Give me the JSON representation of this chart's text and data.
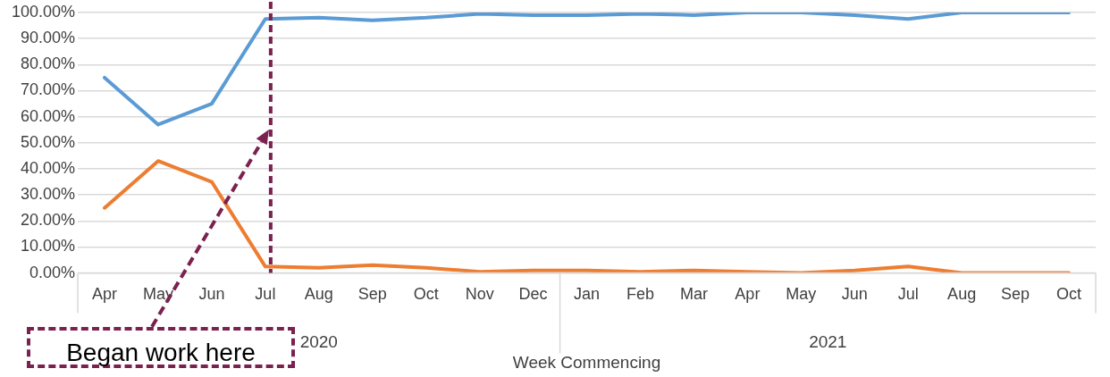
{
  "chart_data": {
    "type": "line",
    "xlabel": "Week Commencing",
    "categories": [
      "Apr",
      "May",
      "Jun",
      "Jul",
      "Aug",
      "Sep",
      "Oct",
      "Nov",
      "Dec",
      "Jan",
      "Feb",
      "Mar",
      "Apr",
      "May",
      "Jun",
      "Jul",
      "Aug",
      "Sep",
      "Oct"
    ],
    "series": [
      {
        "color": "#5b9bd5",
        "values": [
          75,
          57,
          65,
          97.5,
          98,
          97,
          98,
          99.5,
          99,
          99,
          99.5,
          99,
          100,
          100,
          99,
          97.5,
          100,
          100,
          100
        ]
      },
      {
        "color": "#ed7d31",
        "values": [
          25,
          43,
          35,
          2.5,
          2,
          3,
          2,
          0.5,
          1,
          1,
          0.5,
          1,
          0.5,
          0,
          1,
          2.5,
          0,
          0,
          0
        ]
      }
    ],
    "ylim": [
      0,
      100
    ],
    "yticks": [
      {
        "value": 0,
        "label": "0.00%"
      },
      {
        "value": 10,
        "label": "10.00%"
      },
      {
        "value": 20,
        "label": "20.00%"
      },
      {
        "value": 30,
        "label": "30.00%"
      },
      {
        "value": 40,
        "label": "40.00%"
      },
      {
        "value": 50,
        "label": "50.00%"
      },
      {
        "value": 60,
        "label": "60.00%"
      },
      {
        "value": 70,
        "label": "70.00%"
      },
      {
        "value": 80,
        "label": "80.00%"
      },
      {
        "value": 90,
        "label": "90.00%"
      },
      {
        "value": 100,
        "label": "100.00%"
      }
    ],
    "grid": "y",
    "legend": false,
    "marker": "none",
    "line_style": "solid",
    "ref_lines": [
      {
        "axis": "x",
        "value": "Jul",
        "color": "#7b2150",
        "line_style": "dashed"
      }
    ],
    "annotations": [
      "2020",
      "2021",
      "Began work here"
    ]
  }
}
